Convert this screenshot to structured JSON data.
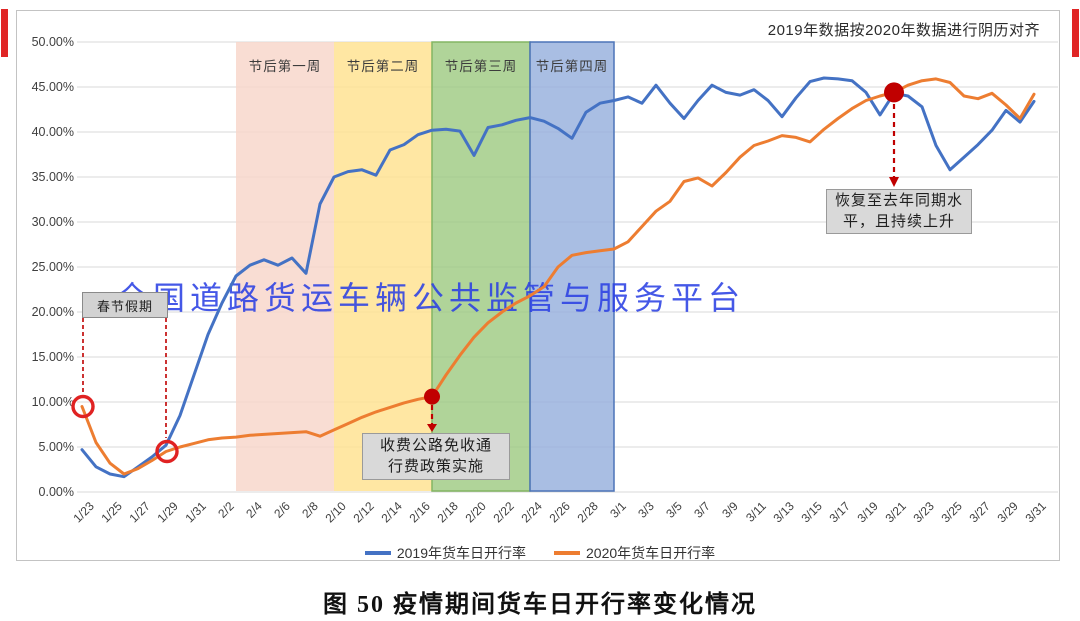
{
  "note": "2019年数据按2020年数据进行阴历对齐",
  "watermark": "全国道路货运车辆公共监管与服务平台",
  "caption": "图 50 疫情期间货车日开行率变化情况",
  "annotations": {
    "holiday": {
      "text": "春节假期"
    },
    "toll": {
      "line1": "收费公路免收通",
      "line2": "行费政策实施"
    },
    "recover": {
      "line1": "恢复至去年同期水",
      "line2": "平，且持续上升"
    }
  },
  "chart_data": {
    "type": "line",
    "title": "图 50 疫情期间货车日开行率变化情况",
    "xlabel": "",
    "ylabel": "",
    "ylim": [
      0,
      50
    ],
    "grid": true,
    "legend_position": "bottom",
    "y_ticks": [
      "50.00%",
      "45.00%",
      "40.00%",
      "35.00%",
      "30.00%",
      "25.00%",
      "20.00%",
      "15.00%",
      "10.00%",
      "5.00%",
      "0.00%"
    ],
    "x_tick_every": 2,
    "dates": [
      "1/23",
      "1/24",
      "1/25",
      "1/26",
      "1/27",
      "1/28",
      "1/29",
      "1/30",
      "1/31",
      "2/1",
      "2/2",
      "2/3",
      "2/4",
      "2/5",
      "2/6",
      "2/7",
      "2/8",
      "2/9",
      "2/10",
      "2/11",
      "2/12",
      "2/13",
      "2/14",
      "2/15",
      "2/16",
      "2/17",
      "2/18",
      "2/19",
      "2/20",
      "2/21",
      "2/22",
      "2/23",
      "2/24",
      "2/25",
      "2/26",
      "2/27",
      "2/28",
      "2/29",
      "3/1",
      "3/2",
      "3/3",
      "3/4",
      "3/5",
      "3/6",
      "3/7",
      "3/8",
      "3/9",
      "3/10",
      "3/11",
      "3/12",
      "3/13",
      "3/14",
      "3/15",
      "3/16",
      "3/17",
      "3/18",
      "3/19",
      "3/20",
      "3/21",
      "3/22",
      "3/23",
      "3/24",
      "3/25",
      "3/26",
      "3/27",
      "3/28",
      "3/29",
      "3/30",
      "3/31"
    ],
    "series": [
      {
        "name": "2019年货车日开行率",
        "color": "#4472C4",
        "values": [
          4.7,
          2.8,
          2.0,
          1.7,
          2.8,
          3.9,
          5.2,
          8.5,
          13.0,
          17.5,
          21.0,
          24.0,
          25.2,
          25.8,
          25.2,
          26.0,
          24.3,
          32.0,
          35.0,
          35.6,
          35.8,
          35.2,
          38.0,
          38.6,
          39.7,
          40.2,
          40.3,
          40.1,
          37.4,
          40.5,
          40.8,
          41.3,
          41.6,
          41.2,
          40.4,
          39.3,
          42.2,
          43.2,
          43.5,
          43.9,
          43.2,
          45.2,
          43.2,
          41.5,
          43.5,
          45.2,
          44.4,
          44.1,
          44.7,
          43.5,
          41.7,
          43.8,
          45.6,
          46.0,
          45.9,
          45.7,
          44.4,
          41.9,
          44.3,
          44.0,
          42.8,
          38.5,
          35.8,
          37.2,
          38.6,
          40.2,
          42.4,
          41.1,
          43.4
        ]
      },
      {
        "name": "2020年货车日开行率",
        "color": "#ED7D31",
        "values": [
          9.5,
          5.5,
          3.2,
          2.0,
          2.6,
          3.5,
          4.5,
          5.0,
          5.4,
          5.8,
          6.0,
          6.1,
          6.3,
          6.4,
          6.5,
          6.6,
          6.7,
          6.2,
          6.9,
          7.6,
          8.3,
          8.9,
          9.4,
          9.9,
          10.3,
          10.6,
          13.0,
          15.2,
          17.2,
          18.8,
          20.0,
          21.0,
          21.8,
          22.8,
          25.0,
          26.3,
          26.6,
          26.8,
          27.0,
          27.8,
          29.5,
          31.2,
          32.3,
          34.5,
          34.9,
          34.0,
          35.5,
          37.2,
          38.5,
          39.0,
          39.6,
          39.4,
          38.9,
          40.3,
          41.5,
          42.6,
          43.5,
          44.0,
          44.4,
          45.2,
          45.7,
          45.9,
          45.5,
          44.0,
          43.7,
          44.3,
          43.0,
          41.5,
          44.2
        ]
      }
    ],
    "bands": [
      {
        "label": "节后第一周",
        "from": "2/3",
        "to": "2/10",
        "fill": "#F7D5C8",
        "stroke": ""
      },
      {
        "label": "节后第二周",
        "from": "2/10",
        "to": "2/17",
        "fill": "#FFE18C",
        "stroke": ""
      },
      {
        "label": "节后第三周",
        "from": "2/17",
        "to": "2/24",
        "fill": "#9CC97F",
        "stroke": "#83B563"
      },
      {
        "label": "节后第四周",
        "from": "2/24",
        "to": "3/1",
        "fill": "#93AEDC",
        "stroke": "#4C74B8"
      }
    ],
    "markers": [
      {
        "date": "1/23",
        "series": "2020年货车日开行率",
        "style": "ring"
      },
      {
        "date": "1/29",
        "series": "2020年货车日开行率",
        "style": "ring"
      },
      {
        "date": "2/17",
        "series": "2020年货车日开行率",
        "style": "dot"
      },
      {
        "date": "3/21",
        "series": "2020年货车日开行率",
        "style": "dot"
      }
    ],
    "marker_color": "#C00000",
    "ring_color": "#E02222",
    "grid_color": "#D9D9D9"
  }
}
